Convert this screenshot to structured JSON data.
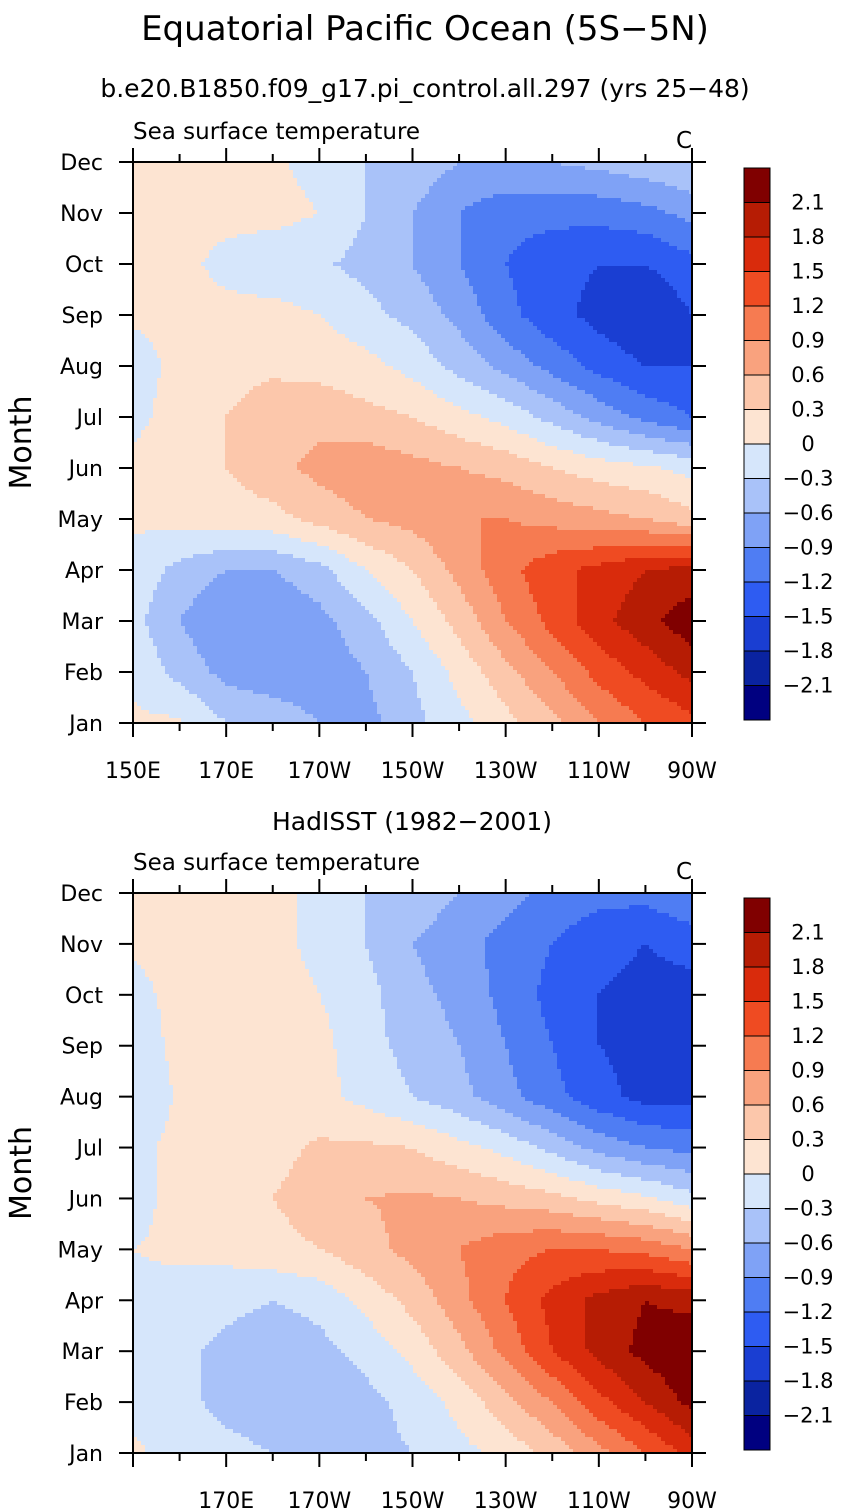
{
  "title": "Equatorial Pacific Ocean (5S−5N)",
  "subtitle": "b.e20.B1850.f09_g17.pi_control.all.297 (yrs 25−48)",
  "chart_data": [
    {
      "type": "heatmap",
      "panel_title": "",
      "variable": "Sea surface temperature",
      "units": "C",
      "ylabel": "Month",
      "x_axis": [
        "150E",
        "170E",
        "170W",
        "150W",
        "130W",
        "110W",
        "90W"
      ],
      "xlim": [
        150,
        270
      ],
      "y_axis": [
        "Jan",
        "Feb",
        "Mar",
        "Apr",
        "May",
        "Jun",
        "Jul",
        "Aug",
        "Sep",
        "Oct",
        "Nov",
        "Dec"
      ],
      "contour_levels": [
        -2.1,
        -1.8,
        -1.5,
        -1.2,
        -0.9,
        -0.6,
        -0.3,
        0,
        0.3,
        0.6,
        0.9,
        1.2,
        1.5,
        1.8,
        2.1
      ],
      "colorbar_labels": [
        "2.1",
        "1.8",
        "1.5",
        "1.2",
        "0.9",
        "0.6",
        "0.3",
        "0",
        "−0.3",
        "−0.6",
        "−0.9",
        "−1.2",
        "−1.5",
        "−1.8",
        "−2.1"
      ],
      "lon": [
        150,
        160,
        170,
        180,
        190,
        200,
        210,
        220,
        230,
        240,
        250,
        260,
        270
      ],
      "values": [
        [
          0.05,
          0.05,
          -0.3,
          -0.4,
          -0.6,
          -0.7,
          -0.4,
          -0.1,
          0.2,
          0.5,
          0.9,
          1.2,
          1.4
        ],
        [
          -0.05,
          -0.4,
          -0.7,
          -0.8,
          -0.8,
          -0.6,
          -0.3,
          0.1,
          0.5,
          0.9,
          1.3,
          1.6,
          1.9
        ],
        [
          -0.2,
          -0.6,
          -0.9,
          -0.9,
          -0.7,
          -0.4,
          0.0,
          0.4,
          0.9,
          1.3,
          1.7,
          2.0,
          2.3
        ],
        [
          -0.1,
          -0.4,
          -0.6,
          -0.6,
          -0.4,
          0.0,
          0.3,
          0.7,
          1.1,
          1.4,
          1.6,
          1.8,
          1.9
        ],
        [
          0.05,
          0.1,
          0.15,
          0.2,
          0.4,
          0.6,
          0.7,
          0.9,
          0.9,
          0.8,
          0.7,
          0.6,
          0.4
        ],
        [
          0.1,
          0.2,
          0.3,
          0.5,
          0.7,
          0.8,
          0.7,
          0.6,
          0.5,
          0.3,
          0.15,
          0.05,
          -0.1
        ],
        [
          -0.1,
          0.15,
          0.3,
          0.45,
          0.5,
          0.4,
          0.3,
          0.1,
          -0.1,
          -0.4,
          -0.7,
          -1.0,
          -1.2
        ],
        [
          -0.15,
          0.1,
          0.2,
          0.25,
          0.2,
          0.1,
          -0.1,
          -0.4,
          -0.7,
          -1.0,
          -1.3,
          -1.5,
          -1.5
        ],
        [
          0.05,
          0.1,
          0.1,
          0.1,
          0.0,
          -0.2,
          -0.4,
          -0.7,
          -1.1,
          -1.4,
          -1.6,
          -1.8,
          -1.5
        ],
        [
          0.1,
          0.1,
          -0.1,
          -0.2,
          -0.25,
          -0.4,
          -0.6,
          -0.9,
          -1.2,
          -1.4,
          -1.5,
          -1.5,
          -1.3
        ],
        [
          0.1,
          0.1,
          0.1,
          0.1,
          0.0,
          -0.3,
          -0.6,
          -0.9,
          -1.1,
          -1.1,
          -1.1,
          -1.0,
          -0.8
        ],
        [
          0.1,
          0.1,
          0.1,
          0.05,
          -0.1,
          -0.3,
          -0.4,
          -0.6,
          -0.6,
          -0.6,
          -0.5,
          -0.4,
          -0.3
        ]
      ]
    },
    {
      "type": "heatmap",
      "panel_title": "HadISST (1982−2001)",
      "variable": "Sea surface temperature",
      "units": "C",
      "ylabel": "Month",
      "x_axis": [
        "170E",
        "170W",
        "150W",
        "130W",
        "110W",
        "90W"
      ],
      "xlim": [
        150,
        270
      ],
      "y_axis": [
        "Jan",
        "Feb",
        "Mar",
        "Apr",
        "May",
        "Jun",
        "Jul",
        "Aug",
        "Sep",
        "Oct",
        "Nov",
        "Dec"
      ],
      "contour_levels": [
        -2.1,
        -1.8,
        -1.5,
        -1.2,
        -0.9,
        -0.6,
        -0.3,
        0,
        0.3,
        0.6,
        0.9,
        1.2,
        1.5,
        1.8,
        2.1
      ],
      "colorbar_labels": [
        "2.1",
        "1.8",
        "1.5",
        "1.2",
        "0.9",
        "0.6",
        "0.3",
        "0",
        "−0.3",
        "−0.6",
        "−0.9",
        "−1.2",
        "−1.5",
        "−1.8",
        "−2.1"
      ],
      "lon": [
        150,
        160,
        170,
        180,
        190,
        200,
        210,
        220,
        230,
        240,
        250,
        260,
        270
      ],
      "values": [
        [
          0.05,
          -0.1,
          -0.2,
          -0.3,
          -0.4,
          -0.4,
          -0.3,
          -0.1,
          0.1,
          0.4,
          0.8,
          1.2,
          1.6
        ],
        [
          -0.1,
          -0.2,
          -0.4,
          -0.5,
          -0.5,
          -0.4,
          -0.2,
          0.1,
          0.5,
          0.9,
          1.4,
          1.8,
          2.2
        ],
        [
          -0.1,
          -0.2,
          -0.4,
          -0.5,
          -0.4,
          -0.2,
          0.1,
          0.5,
          1.0,
          1.5,
          1.9,
          2.2,
          2.4
        ],
        [
          -0.05,
          -0.1,
          -0.2,
          -0.3,
          -0.2,
          0.1,
          0.4,
          0.8,
          1.2,
          1.6,
          1.9,
          2.1,
          2.0
        ],
        [
          0.0,
          0.05,
          0.1,
          0.2,
          0.3,
          0.5,
          0.7,
          0.9,
          1.1,
          1.2,
          1.2,
          1.1,
          0.9
        ],
        [
          -0.1,
          0.1,
          0.2,
          0.3,
          0.45,
          0.6,
          0.65,
          0.6,
          0.5,
          0.4,
          0.2,
          0.05,
          -0.2
        ],
        [
          -0.1,
          0.1,
          0.15,
          0.2,
          0.35,
          0.35,
          0.3,
          0.1,
          -0.1,
          -0.4,
          -0.7,
          -0.9,
          -1.0
        ],
        [
          -0.3,
          0.05,
          0.1,
          0.15,
          0.1,
          -0.1,
          -0.3,
          -0.5,
          -0.8,
          -1.1,
          -1.4,
          -1.6,
          -1.6
        ],
        [
          -0.2,
          0.1,
          0.15,
          0.3,
          0.1,
          -0.2,
          -0.4,
          -0.6,
          -0.9,
          -1.2,
          -1.5,
          -1.6,
          -1.6
        ],
        [
          -0.1,
          0.1,
          0.1,
          0.1,
          0.0,
          -0.2,
          -0.5,
          -0.7,
          -1.0,
          -1.3,
          -1.5,
          -1.6,
          -1.6
        ],
        [
          0.05,
          0.1,
          0.1,
          0.05,
          -0.05,
          -0.3,
          -0.6,
          -0.8,
          -1.0,
          -1.2,
          -1.4,
          -1.5,
          -1.4
        ],
        [
          0.1,
          0.1,
          0.1,
          0.05,
          -0.05,
          -0.3,
          -0.4,
          -0.6,
          -0.8,
          -1.0,
          -1.1,
          -1.1,
          -0.9
        ]
      ]
    }
  ],
  "colors": [
    "#000080",
    "#0a23a0",
    "#1a3ed2",
    "#2e5cf2",
    "#4f7df3",
    "#7fa2f6",
    "#a9c2f9",
    "#d6e6fb",
    "#fde4d2",
    "#fcc7ab",
    "#f9a27e",
    "#f67b51",
    "#ef4b22",
    "#d92b0c",
    "#b61c04",
    "#800000"
  ]
}
